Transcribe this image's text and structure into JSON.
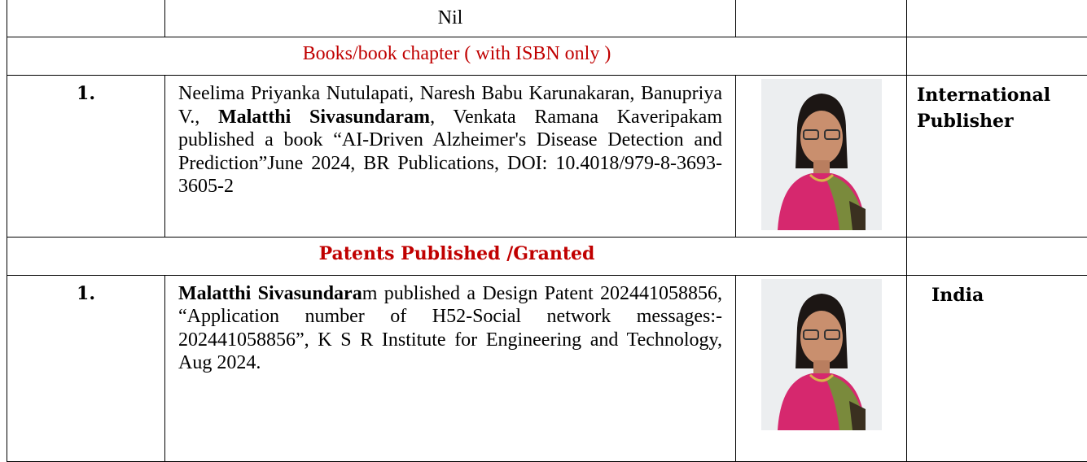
{
  "table": {
    "rows": [
      {
        "text": "Nil"
      },
      {
        "heading": "Books/book chapter ( with ISBN only )",
        "bold": false
      },
      {
        "number": "1.",
        "segments": [
          {
            "text": "Neelima Priyanka Nutulapati, Naresh Babu Karunakaran, Banupriya V., ",
            "bold": false
          },
          {
            "text": "Malatthi Sivasundaram",
            "bold": true
          },
          {
            "text": ", Venkata Ramana Kaveripakam published a book “AI-Driven Alzheimer's Disease Detection and Prediction”June 2024, BR Publications, DOI:  10.4018/979-8-3693-3605-2",
            "bold": false
          }
        ],
        "place": "International Publisher"
      },
      {
        "heading": "Patents Published /Granted",
        "bold": true
      },
      {
        "number": "1.",
        "segments": [
          {
            "text": "Malatthi Sivasundara",
            "bold": true
          },
          {
            "text": "m published a Design Patent 202441058856, “Application number of H52-Social network messages:- 202441058856”, K S R Institute for Engineering and Technology, Aug 2024.",
            "bold": false
          }
        ],
        "place": "India"
      }
    ]
  }
}
